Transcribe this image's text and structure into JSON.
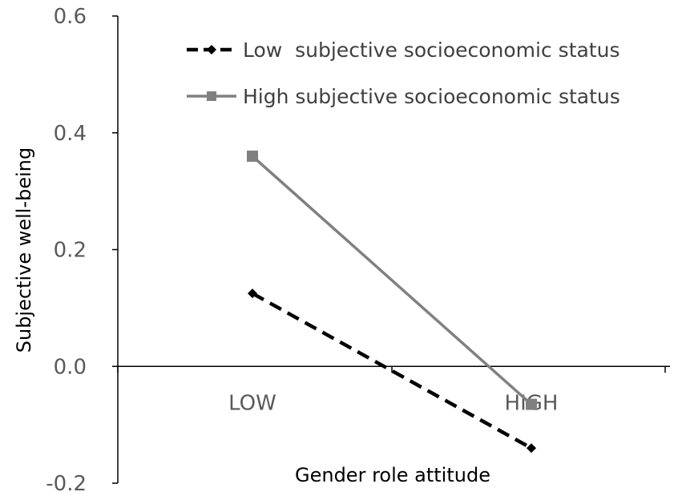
{
  "chart_data": {
    "type": "line",
    "title": "",
    "xlabel": "Gender role attitude",
    "ylabel": "Subjective well-being",
    "categories": [
      "LOW",
      "HIGH"
    ],
    "ylim": [
      -0.2,
      0.6
    ],
    "yticks": [
      "0.6",
      "0.4",
      "0.2",
      "0.0",
      "-0.2"
    ],
    "ytick_values": [
      0.6,
      0.4,
      0.2,
      0.0,
      -0.2
    ],
    "grid": false,
    "legend_position": "top-right",
    "series": [
      {
        "name": "Low  subjective socioeconomic status",
        "values": [
          0.125,
          -0.14
        ],
        "color": "#000000",
        "style": "dashed",
        "marker": "diamond"
      },
      {
        "name": "High subjective socioeconomic status",
        "values": [
          0.36,
          -0.065
        ],
        "color": "#808080",
        "style": "solid",
        "marker": "square"
      }
    ]
  }
}
